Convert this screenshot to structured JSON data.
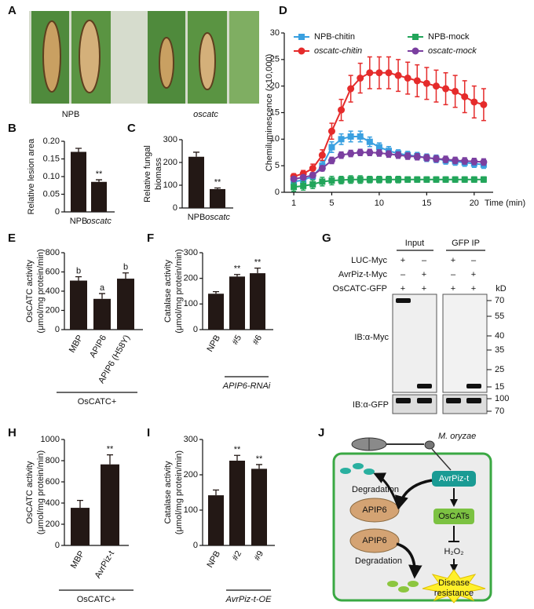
{
  "photo": {
    "panel": "A",
    "labels": [
      "NPB",
      "oscatc"
    ]
  },
  "chart_data": [
    {
      "type": "bar",
      "panel": "B",
      "ylabel": [
        "Relative lesion area"
      ],
      "categories": [
        "NPB",
        "oscatc"
      ],
      "values": [
        0.17,
        0.085
      ],
      "errors": [
        0.01,
        0.006
      ],
      "annotations": [
        null,
        "**"
      ],
      "color": "#231815",
      "ylim": [
        0,
        0.2
      ],
      "yticks": [
        0,
        0.05,
        {
          "value": 0.1,
          "label": "0.10"
        },
        0.15,
        {
          "value": 0.2,
          "label": "0.20"
        }
      ]
    },
    {
      "type": "bar",
      "panel": "C",
      "ylabel": [
        "Relative fungal",
        "biomass"
      ],
      "categories": [
        "NPB",
        "oscatc"
      ],
      "values": [
        225,
        83
      ],
      "errors": [
        20,
        5
      ],
      "annotations": [
        null,
        "**"
      ],
      "color": "#231815",
      "ylim": [
        0,
        300
      ],
      "yticks": [
        0,
        100,
        200,
        300
      ]
    },
    {
      "type": "line",
      "panel": "D",
      "ylabel": [
        "Chemiluminescence (×10,000)"
      ],
      "xlabel": "Time (min)",
      "x": [
        1,
        2,
        3,
        4,
        5,
        6,
        7,
        8,
        9,
        10,
        11,
        12,
        13,
        14,
        15,
        16,
        17,
        18,
        19,
        20,
        21
      ],
      "xlim": [
        0,
        22
      ],
      "xticks": [
        1,
        5,
        10,
        15,
        20
      ],
      "ylim": [
        0,
        30
      ],
      "yticks": [
        0,
        5,
        10,
        15,
        20,
        25,
        30
      ],
      "series": [
        {
          "name": "NPB-chitin",
          "color": "#3aa0e0",
          "marker": "square",
          "values": [
            2,
            2.3,
            3,
            5,
            8.5,
            10,
            10.5,
            10.5,
            9.5,
            8.5,
            7.8,
            7.3,
            7,
            6.8,
            6.5,
            6.3,
            6,
            5.8,
            5.6,
            5.4,
            5.2
          ],
          "errors": [
            0.5,
            0.5,
            0.6,
            0.8,
            1,
            1,
            1,
            1,
            0.9,
            0.8,
            0.8,
            0.7,
            0.7,
            0.7,
            0.7,
            0.7,
            0.7,
            0.7,
            0.7,
            0.7,
            0.7
          ]
        },
        {
          "name": "NPB-mock",
          "color": "#22a55a",
          "marker": "square",
          "values": [
            1,
            1.2,
            1.5,
            2,
            2.2,
            2.3,
            2.4,
            2.4,
            2.4,
            2.4,
            2.4,
            2.4,
            2.4,
            2.4,
            2.4,
            2.4,
            2.4,
            2.4,
            2.4,
            2.4,
            2.4
          ],
          "errors": [
            0.8,
            0.8,
            0.8,
            0.8,
            0.8,
            0.7,
            0.7,
            0.7,
            0.6,
            0.6,
            0.6,
            0.6,
            0.5,
            0.5,
            0.5,
            0.5,
            0.5,
            0.5,
            0.5,
            0.5,
            0.5
          ]
        },
        {
          "name": "oscatc-chitin",
          "color": "#e52b2b",
          "marker": "circle",
          "values": [
            3,
            3.5,
            4.5,
            7,
            11.5,
            15.5,
            19.5,
            21.5,
            22.5,
            22.5,
            22.5,
            22,
            21.5,
            21,
            20.5,
            20,
            19.5,
            19,
            18,
            17,
            16.5
          ],
          "errors": [
            0.5,
            0.6,
            0.8,
            1,
            1.5,
            2,
            2.5,
            2.8,
            3,
            3,
            3,
            3,
            3,
            3,
            3,
            3,
            3,
            3,
            3,
            3,
            3
          ]
        },
        {
          "name": "oscatc-mock",
          "color": "#7b3fa0",
          "marker": "circle",
          "values": [
            2.5,
            2.8,
            3.2,
            4.5,
            6,
            7,
            7.3,
            7.5,
            7.5,
            7.4,
            7.2,
            7,
            6.8,
            6.7,
            6.5,
            6.3,
            6.2,
            6,
            5.9,
            5.8,
            5.7
          ],
          "errors": [
            0.4,
            0.4,
            0.5,
            0.5,
            0.6,
            0.6,
            0.6,
            0.6,
            0.6,
            0.6,
            0.6,
            0.6,
            0.6,
            0.6,
            0.6,
            0.6,
            0.6,
            0.6,
            0.6,
            0.6,
            0.6
          ]
        }
      ]
    },
    {
      "type": "bar",
      "panel": "E",
      "ylabel": [
        "OsCATC activity",
        "(μmol/mg protein/min)"
      ],
      "categories": [
        "MBP",
        "APIP6",
        "APIP6 (H58Y)"
      ],
      "values": [
        510,
        320,
        530
      ],
      "errors": [
        40,
        55,
        60
      ],
      "annotations": [
        "b",
        "a",
        "b"
      ],
      "group_label": "OsCATC+",
      "color": "#231815",
      "ylim": [
        0,
        800
      ],
      "yticks": [
        0,
        200,
        400,
        600,
        800
      ]
    },
    {
      "type": "bar",
      "panel": "F",
      "ylabel": [
        "Catalase activity",
        "(μmol/mg protein/min)"
      ],
      "categories": [
        "NPB",
        "#5",
        "#6"
      ],
      "values": [
        140,
        207,
        220
      ],
      "errors": [
        8,
        8,
        20
      ],
      "annotations": [
        null,
        "**",
        "**"
      ],
      "group_label": "APIP6-RNAi",
      "color": "#231815",
      "ylim": [
        0,
        300
      ],
      "yticks": [
        0,
        100,
        200,
        300
      ]
    },
    {
      "type": "bar",
      "panel": "H",
      "ylabel": [
        "OsCATC activity",
        "(μmol/mg protein/min)"
      ],
      "categories": [
        "MBP",
        "AvrPiz-t"
      ],
      "values": [
        355,
        765
      ],
      "errors": [
        70,
        90
      ],
      "annotations": [
        null,
        "**"
      ],
      "group_label": "OsCATC+",
      "color": "#231815",
      "ylim": [
        0,
        1000
      ],
      "yticks": [
        0,
        200,
        400,
        600,
        800,
        1000
      ]
    },
    {
      "type": "bar",
      "panel": "I",
      "ylabel": [
        "Catalase activity",
        "(μmol/mg protein/min)"
      ],
      "categories": [
        "NPB",
        "#2",
        "#9"
      ],
      "values": [
        142,
        240,
        217
      ],
      "errors": [
        15,
        15,
        12
      ],
      "annotations": [
        null,
        "**",
        "**"
      ],
      "group_label": "AvrPiz-t-OE",
      "color": "#231815",
      "ylim": [
        0,
        300
      ],
      "yticks": [
        0,
        100,
        200,
        300
      ]
    }
  ],
  "blot": {
    "panel": "G",
    "headers": [
      "Input",
      "GFP IP"
    ],
    "rows": [
      {
        "label": "LUC-Myc",
        "signs": [
          "+",
          "–",
          "+",
          "–"
        ]
      },
      {
        "label": "AvrPiz-t-Myc",
        "signs": [
          "–",
          "+",
          "–",
          "+"
        ]
      },
      {
        "label": "OsCATC-GFP",
        "signs": [
          "+",
          "+",
          "+",
          "+"
        ]
      }
    ],
    "unit": "kD",
    "ib_labels": [
      "IB:α-Myc",
      "IB:α-GFP"
    ],
    "myc_markers": [
      70,
      55,
      40,
      35,
      25,
      15
    ],
    "gfp_markers": [
      100,
      70
    ]
  },
  "diagram": {
    "panel": "J",
    "pathogen": "M. oryzae",
    "effector": "AvrPiz-t",
    "degradation": [
      "Degradation",
      "Degradation"
    ],
    "apip6": [
      "APIP6",
      "APIP6"
    ],
    "target": "OsCATs",
    "ros": "H₂O₂",
    "outcome": [
      "Disease",
      "resistance"
    ]
  }
}
